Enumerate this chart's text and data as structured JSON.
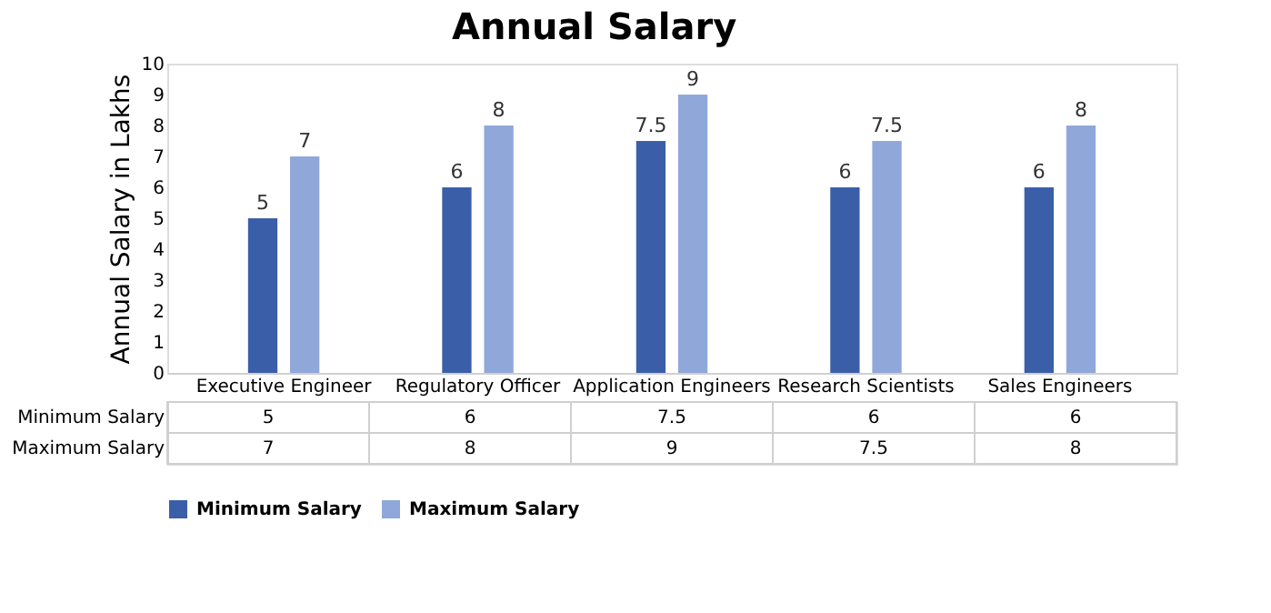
{
  "chart_data": {
    "type": "bar",
    "title": "Annual Salary",
    "ylabel": "Annual Salary in Lakhs",
    "categories": [
      "Executive Engineer",
      "Regulatory Officer",
      "Application Engineers",
      "Research Scientists",
      "Sales Engineers"
    ],
    "series": [
      {
        "name": "Minimum Salary",
        "color": "#3a5fa8",
        "values": [
          5,
          6,
          7.5,
          6,
          6
        ]
      },
      {
        "name": "Maximum Salary",
        "color": "#8fa8d9",
        "values": [
          7,
          8,
          9,
          7.5,
          8
        ]
      }
    ],
    "annotations": [
      "5",
      "6",
      "7.5",
      "6",
      "6",
      "7",
      "8",
      "9",
      "7.5",
      "8"
    ],
    "ylim": [
      0,
      10
    ],
    "yticks": [
      0,
      1,
      2,
      3,
      4,
      5,
      6,
      7,
      8,
      9,
      10
    ],
    "grid": false,
    "legend": "bottom",
    "data_labels": true
  }
}
